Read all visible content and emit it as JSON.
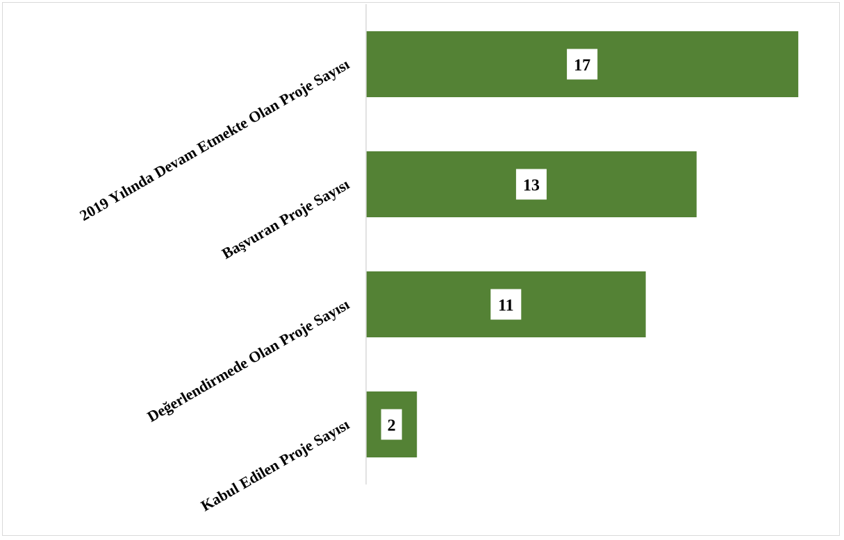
{
  "chart_data": {
    "type": "bar",
    "orientation": "horizontal",
    "categories": [
      "2019 Yılında Devam Etmekte Olan Proje Sayısı",
      "Başvuran Proje Sayısı",
      "Değerlendirmede Olan Proje Sayısı",
      "Kabul Edilen Proje Sayısı"
    ],
    "values": [
      17,
      13,
      11,
      2
    ],
    "title": "",
    "xlabel": "",
    "ylabel": "",
    "xlim": [
      0,
      18
    ],
    "grid": false,
    "legend": "none",
    "data_labels": true,
    "bar_color": "#548235",
    "data_label_background": "#ffffff"
  }
}
